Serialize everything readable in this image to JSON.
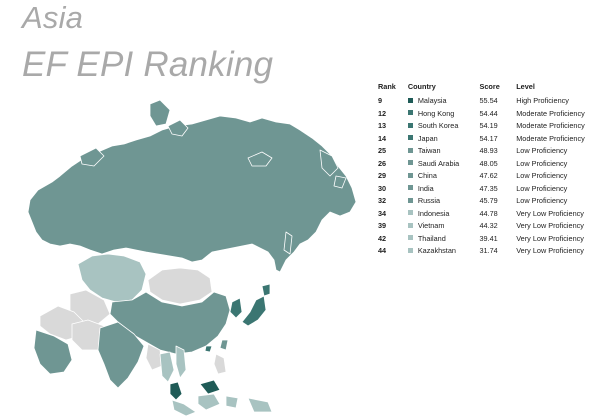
{
  "title": {
    "line1": "Asia",
    "line2": "EF EPI Ranking"
  },
  "colors": {
    "high": "#1f5b57",
    "moderate": "#3b7672",
    "low": "#6f9693",
    "very_low": "#a8c3c1",
    "unranked": "#d9d9d9"
  },
  "table": {
    "headers": {
      "rank": "Rank",
      "country": "Country",
      "score": "Score",
      "level": "Level"
    },
    "rows": [
      {
        "rank": "9",
        "country": "Malaysia",
        "score": "55.54",
        "level": "High Proficiency",
        "color": "#1f5b57"
      },
      {
        "rank": "12",
        "country": "Hong Kong",
        "score": "54.44",
        "level": "Moderate Proficiency",
        "color": "#3b7672"
      },
      {
        "rank": "13",
        "country": "South Korea",
        "score": "54.19",
        "level": "Moderate Proficiency",
        "color": "#3b7672"
      },
      {
        "rank": "14",
        "country": "Japan",
        "score": "54.17",
        "level": "Moderate Proficiency",
        "color": "#3b7672"
      },
      {
        "rank": "25",
        "country": "Taiwan",
        "score": "48.93",
        "level": "Low Proficiency",
        "color": "#6f9693"
      },
      {
        "rank": "26",
        "country": "Saudi Arabia",
        "score": "48.05",
        "level": "Low Proficiency",
        "color": "#6f9693"
      },
      {
        "rank": "29",
        "country": "China",
        "score": "47.62",
        "level": "Low Proficiency",
        "color": "#6f9693"
      },
      {
        "rank": "30",
        "country": "India",
        "score": "47.35",
        "level": "Low Proficiency",
        "color": "#6f9693"
      },
      {
        "rank": "32",
        "country": "Russia",
        "score": "45.79",
        "level": "Low Proficiency",
        "color": "#6f9693"
      },
      {
        "rank": "34",
        "country": "Indonesia",
        "score": "44.78",
        "level": "Very Low Proficiency",
        "color": "#a8c3c1"
      },
      {
        "rank": "39",
        "country": "Vietnam",
        "score": "44.32",
        "level": "Very Low Proficiency",
        "color": "#a8c3c1"
      },
      {
        "rank": "42",
        "country": "Thailand",
        "score": "39.41",
        "level": "Very Low Proficiency",
        "color": "#a8c3c1"
      },
      {
        "rank": "44",
        "country": "Kazakhstan",
        "score": "31.74",
        "level": "Very Low Proficiency",
        "color": "#a8c3c1"
      }
    ]
  }
}
